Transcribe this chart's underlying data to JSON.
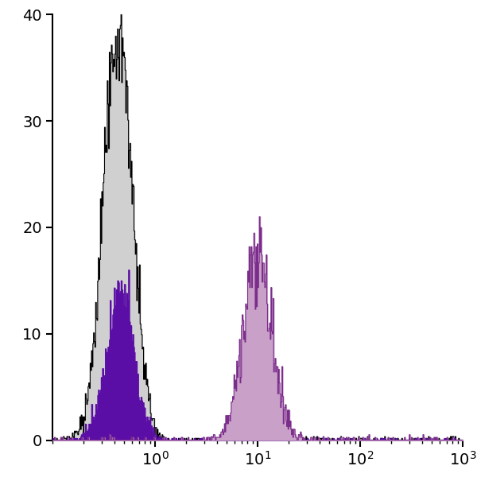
{
  "xlim": [
    0.1,
    1000
  ],
  "ylim": [
    0,
    40
  ],
  "yticks": [
    0,
    10,
    20,
    30,
    40
  ],
  "xticks": [
    1,
    10,
    100,
    1000
  ],
  "xticklabels": [
    "10$^0$",
    "10$^1$",
    "10$^2$",
    "10$^3$"
  ],
  "background_color": "#ffffff",
  "hist1_color": "#d0d0d0",
  "hist1_edge_color": "#000000",
  "hist1_peak_log": -0.36,
  "hist1_sigma": 0.14,
  "hist1_peak_y": 40.0,
  "hist1_n": 12000,
  "hist2_color": "#5b0ea6",
  "hist2_edge_color": "#5b0ea6",
  "hist2_peak_log": -0.34,
  "hist2_sigma": 0.13,
  "hist2_peak_y": 16.0,
  "hist2_n": 4000,
  "hist3_color": "#c8a0c8",
  "hist3_edge_color": "#7b2d8b",
  "hist3_peak_log": 1.0,
  "hist3_sigma": 0.14,
  "hist3_peak_y": 21.0,
  "hist3_n": 3500,
  "n_bins": 600,
  "log_min": -1,
  "log_max": 3,
  "noise_low": -1,
  "noise_high": 3,
  "noise_n1": 200,
  "noise_n2": 100,
  "noise_n3": 80,
  "seed": 12345
}
